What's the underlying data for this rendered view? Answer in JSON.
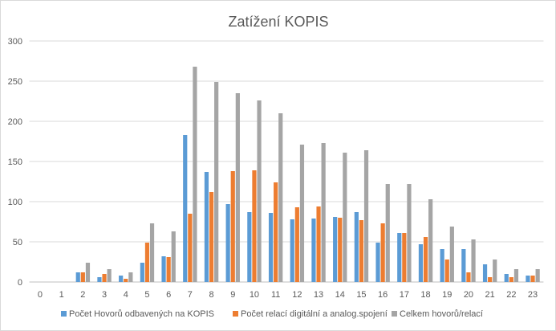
{
  "chart_data": {
    "type": "bar",
    "title": "Zatížení KOPIS",
    "xlabel": "",
    "ylabel": "",
    "ylim": [
      0,
      300
    ],
    "yticks": [
      0,
      50,
      100,
      150,
      200,
      250,
      300
    ],
    "grid": true,
    "legend": "bottom",
    "categories": [
      "0",
      "1",
      "2",
      "3",
      "4",
      "5",
      "6",
      "7",
      "8",
      "9",
      "10",
      "11",
      "12",
      "13",
      "14",
      "15",
      "16",
      "17",
      "18",
      "19",
      "20",
      "21",
      "22",
      "23"
    ],
    "series": [
      {
        "name": "Počet Hovorů odbavených na KOPIS",
        "color": "#5b9bd5",
        "values": [
          0,
          0,
          12,
          6,
          8,
          24,
          32,
          183,
          137,
          97,
          87,
          86,
          78,
          79,
          81,
          87,
          49,
          61,
          47,
          41,
          41,
          22,
          10,
          8
        ]
      },
      {
        "name": "Počet relací digitální a analog.spojení",
        "color": "#ed7d31",
        "values": [
          0,
          0,
          12,
          10,
          4,
          49,
          31,
          85,
          112,
          138,
          139,
          124,
          93,
          94,
          80,
          77,
          73,
          61,
          56,
          28,
          12,
          6,
          6,
          8
        ]
      },
      {
        "name": "Celkem hovorů/relací",
        "color": "#a5a5a5",
        "values": [
          0,
          0,
          24,
          16,
          12,
          73,
          63,
          268,
          249,
          235,
          226,
          210,
          171,
          173,
          161,
          164,
          122,
          122,
          103,
          69,
          53,
          28,
          16,
          16
        ]
      }
    ]
  }
}
